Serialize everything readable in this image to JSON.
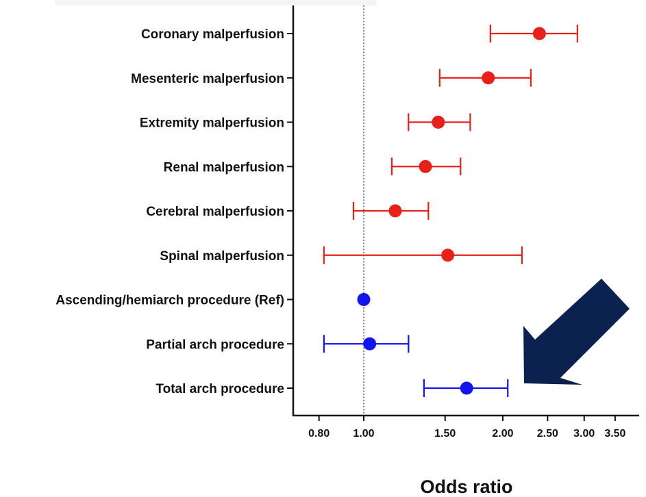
{
  "chart_data": {
    "type": "scatter",
    "subtype": "forest-plot",
    "title": "",
    "xlabel": "Odds ratio",
    "ylabel": "",
    "x_scale": "log",
    "xlim": [
      0.72,
      3.9
    ],
    "x_ticks": [
      0.8,
      1.0,
      1.5,
      2.0,
      2.5,
      3.0,
      3.5
    ],
    "x_tick_labels": [
      "0.80",
      "1.00",
      "1.50",
      "2.00",
      "2.50",
      "3.00",
      "3.50"
    ],
    "reference_line": 1.0,
    "grid": false,
    "legend": "none",
    "colors": {
      "red": "#e8201a",
      "blue": "#1414ee",
      "arrow": "#0b2150",
      "axis": "#111111"
    },
    "rows": [
      {
        "label": "Coronary malperfusion",
        "or": 2.4,
        "lower": 1.88,
        "upper": 2.9,
        "color": "red"
      },
      {
        "label": "Mesenteric malperfusion",
        "or": 1.86,
        "lower": 1.46,
        "upper": 2.3,
        "color": "red"
      },
      {
        "label": "Extremity malperfusion",
        "or": 1.45,
        "lower": 1.25,
        "upper": 1.7,
        "color": "red"
      },
      {
        "label": "Renal malperfusion",
        "or": 1.36,
        "lower": 1.15,
        "upper": 1.62,
        "color": "red"
      },
      {
        "label": "Cerebral malperfusion",
        "or": 1.17,
        "lower": 0.95,
        "upper": 1.38,
        "color": "red"
      },
      {
        "label": "Spinal malperfusion",
        "or": 1.52,
        "lower": 0.82,
        "upper": 2.2,
        "color": "red"
      },
      {
        "label": "Ascending/hemiarch procedure (Ref)",
        "or": 1.0,
        "lower": 1.0,
        "upper": 1.0,
        "color": "blue"
      },
      {
        "label": "Partial arch procedure",
        "or": 1.03,
        "lower": 0.82,
        "upper": 1.25,
        "color": "blue"
      },
      {
        "label": "Total arch procedure",
        "or": 1.67,
        "lower": 1.35,
        "upper": 2.05,
        "color": "blue"
      }
    ],
    "annotation": {
      "type": "arrow",
      "direction": "down-left",
      "color": "arrow"
    }
  }
}
